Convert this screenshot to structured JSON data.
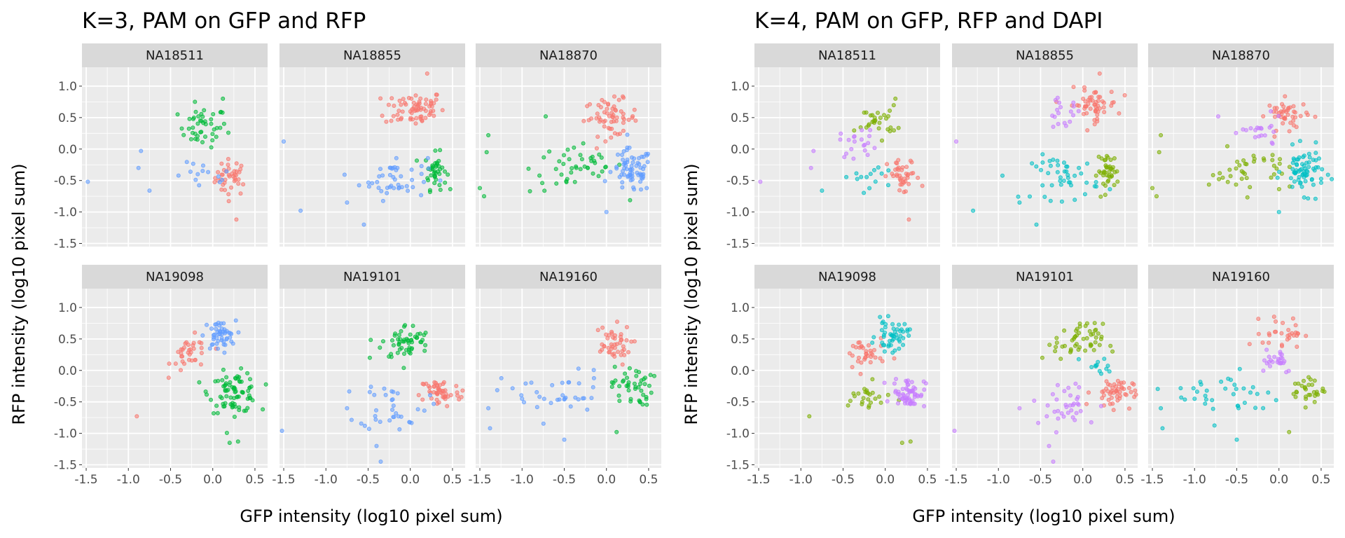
{
  "chart_data": [
    {
      "type": "scatter",
      "title": "K=3, PAM on GFP and RFP",
      "xlabel": "GFP intensity (log10 pixel sum)",
      "ylabel": "RFP intensity (log10 pixel sum)",
      "xlim": [
        -1.55,
        0.65
      ],
      "ylim": [
        -1.55,
        1.3
      ],
      "xticks": [
        "-1.5",
        "-1.0",
        "-0.5",
        "0.0",
        "0.5"
      ],
      "yticks": [
        "-1.5",
        "-1.0",
        "-0.5",
        "0.0",
        "0.5",
        "1.0"
      ],
      "grid": true,
      "legend": "none",
      "cluster_colors": [
        "#F8766D",
        "#00BA38",
        "#619CFF"
      ],
      "panels": [
        {
          "name": "NA18511",
          "clusters": [
            {
              "cx": 0.22,
              "cy": -0.45,
              "sx": 0.12,
              "sy": 0.18,
              "n": 40,
              "color": "#F8766D",
              "outliers": [
                [
                  0.28,
                  -1.12
                ]
              ]
            },
            {
              "cx": -0.12,
              "cy": 0.35,
              "sx": 0.18,
              "sy": 0.2,
              "n": 45,
              "color": "#00BA38",
              "outliers": [
                [
                  0.12,
                  0.8
                ]
              ]
            },
            {
              "cx": -0.1,
              "cy": -0.45,
              "sx": 0.22,
              "sy": 0.14,
              "n": 14,
              "color": "#619CFF",
              "outliers": [
                [
                  -1.48,
                  -0.52
                ],
                [
                  -0.88,
                  -0.3
                ],
                [
                  -0.75,
                  -0.66
                ],
                [
                  -0.85,
                  -0.03
                ]
              ]
            }
          ]
        },
        {
          "name": "NA18855",
          "clusters": [
            {
              "cx": 0.05,
              "cy": 0.65,
              "sx": 0.22,
              "sy": 0.18,
              "n": 70,
              "color": "#F8766D",
              "outliers": [
                [
                  0.2,
                  1.2
                ]
              ]
            },
            {
              "cx": 0.3,
              "cy": -0.35,
              "sx": 0.08,
              "sy": 0.18,
              "n": 40,
              "color": "#00BA38",
              "outliers": []
            },
            {
              "cx": -0.2,
              "cy": -0.45,
              "sx": 0.25,
              "sy": 0.22,
              "n": 45,
              "color": "#619CFF",
              "outliers": [
                [
                  -1.5,
                  0.12
                ],
                [
                  -1.3,
                  -0.98
                ],
                [
                  -0.55,
                  -1.2
                ],
                [
                  -0.75,
                  -0.85
                ]
              ]
            }
          ]
        },
        {
          "name": "NA18870",
          "clusters": [
            {
              "cx": 0.05,
              "cy": 0.5,
              "sx": 0.2,
              "sy": 0.18,
              "n": 60,
              "color": "#F8766D",
              "outliers": []
            },
            {
              "cx": -0.35,
              "cy": -0.3,
              "sx": 0.35,
              "sy": 0.25,
              "n": 45,
              "color": "#00BA38",
              "outliers": [
                [
                  -1.4,
                  0.22
                ],
                [
                  -1.42,
                  -0.05
                ],
                [
                  -1.5,
                  -0.62
                ],
                [
                  -1.45,
                  -0.75
                ],
                [
                  -0.72,
                  0.52
                ]
              ]
            },
            {
              "cx": 0.3,
              "cy": -0.35,
              "sx": 0.15,
              "sy": 0.22,
              "n": 70,
              "color": "#619CFF",
              "outliers": [
                [
                  0.0,
                  -1.0
                ]
              ]
            }
          ]
        },
        {
          "name": "NA19098",
          "clusters": [
            {
              "cx": -0.25,
              "cy": 0.25,
              "sx": 0.15,
              "sy": 0.18,
              "n": 35,
              "color": "#F8766D",
              "outliers": [
                [
                  -0.9,
                  -0.73
                ]
              ]
            },
            {
              "cx": 0.25,
              "cy": -0.35,
              "sx": 0.18,
              "sy": 0.2,
              "n": 80,
              "color": "#00BA38",
              "outliers": [
                [
                  0.2,
                  -1.15
                ],
                [
                  0.3,
                  -1.13
                ]
              ]
            },
            {
              "cx": 0.08,
              "cy": 0.55,
              "sx": 0.12,
              "sy": 0.15,
              "n": 50,
              "color": "#619CFF",
              "outliers": []
            }
          ]
        },
        {
          "name": "NA19101",
          "clusters": [
            {
              "cx": 0.35,
              "cy": -0.35,
              "sx": 0.15,
              "sy": 0.15,
              "n": 50,
              "color": "#F8766D",
              "outliers": [
                [
                  0.62,
                  -0.32
                ]
              ]
            },
            {
              "cx": -0.05,
              "cy": 0.45,
              "sx": 0.18,
              "sy": 0.18,
              "n": 55,
              "color": "#00BA38",
              "outliers": [
                [
                  -0.48,
                  0.2
                ]
              ]
            },
            {
              "cx": -0.2,
              "cy": -0.55,
              "sx": 0.25,
              "sy": 0.25,
              "n": 35,
              "color": "#619CFF",
              "outliers": [
                [
                  -1.52,
                  -0.96
                ],
                [
                  -0.75,
                  -0.6
                ],
                [
                  -0.35,
                  -1.45
                ],
                [
                  -0.4,
                  -1.2
                ]
              ]
            }
          ]
        },
        {
          "name": "NA19160",
          "clusters": [
            {
              "cx": 0.05,
              "cy": 0.4,
              "sx": 0.15,
              "sy": 0.2,
              "n": 45,
              "color": "#F8766D",
              "outliers": []
            },
            {
              "cx": 0.3,
              "cy": -0.25,
              "sx": 0.15,
              "sy": 0.2,
              "n": 45,
              "color": "#00BA38",
              "outliers": [
                [
                  0.12,
                  -0.98
                ]
              ]
            },
            {
              "cx": -0.6,
              "cy": -0.4,
              "sx": 0.4,
              "sy": 0.25,
              "n": 35,
              "color": "#619CFF",
              "outliers": [
                [
                  -1.4,
                  -0.6
                ],
                [
                  -1.38,
                  -0.92
                ],
                [
                  -1.0,
                  -0.45
                ],
                [
                  -0.5,
                  -1.1
                ]
              ]
            }
          ]
        }
      ]
    },
    {
      "type": "scatter",
      "title": "K=4, PAM on GFP, RFP and DAPI",
      "xlabel": "GFP intensity (log10 pixel sum)",
      "ylabel": "RFP intensity (log10 pixel sum)",
      "xlim": [
        -1.55,
        0.65
      ],
      "ylim": [
        -1.55,
        1.3
      ],
      "xticks": [
        "-1.5",
        "-1.0",
        "-0.5",
        "0.0",
        "0.5"
      ],
      "yticks": [
        "-1.5",
        "-1.0",
        "-0.5",
        "0.0",
        "0.5",
        "1.0"
      ],
      "grid": true,
      "legend": "none",
      "cluster_colors": [
        "#F8766D",
        "#7CAE00",
        "#00BFC4",
        "#C77CFF"
      ],
      "panels": [
        {
          "name": "NA18511",
          "clusters": [
            {
              "cx": 0.22,
              "cy": -0.45,
              "sx": 0.12,
              "sy": 0.18,
              "n": 40,
              "color": "#F8766D",
              "outliers": [
                [
                  0.28,
                  -1.12
                ]
              ]
            },
            {
              "cx": -0.1,
              "cy": 0.45,
              "sx": 0.15,
              "sy": 0.15,
              "n": 30,
              "color": "#7CAE00",
              "outliers": [
                [
                  0.12,
                  0.8
                ]
              ]
            },
            {
              "cx": -0.15,
              "cy": -0.45,
              "sx": 0.22,
              "sy": 0.14,
              "n": 14,
              "color": "#00BFC4",
              "outliers": [
                [
                  -0.75,
                  -0.66
                ]
              ]
            },
            {
              "cx": -0.3,
              "cy": 0.1,
              "sx": 0.15,
              "sy": 0.15,
              "n": 20,
              "color": "#C77CFF",
              "outliers": [
                [
                  -1.48,
                  -0.52
                ],
                [
                  -0.88,
                  -0.3
                ],
                [
                  -0.85,
                  -0.03
                ]
              ]
            }
          ]
        },
        {
          "name": "NA18855",
          "clusters": [
            {
              "cx": 0.12,
              "cy": 0.7,
              "sx": 0.18,
              "sy": 0.16,
              "n": 55,
              "color": "#F8766D",
              "outliers": [
                [
                  0.2,
                  1.2
                ]
              ]
            },
            {
              "cx": 0.3,
              "cy": -0.35,
              "sx": 0.08,
              "sy": 0.18,
              "n": 40,
              "color": "#7CAE00",
              "outliers": []
            },
            {
              "cx": -0.2,
              "cy": -0.45,
              "sx": 0.25,
              "sy": 0.22,
              "n": 45,
              "color": "#00BFC4",
              "outliers": [
                [
                  -1.3,
                  -0.98
                ],
                [
                  -0.55,
                  -1.2
                ],
                [
                  -0.75,
                  -0.85
                ]
              ]
            },
            {
              "cx": -0.25,
              "cy": 0.55,
              "sx": 0.15,
              "sy": 0.15,
              "n": 18,
              "color": "#C77CFF",
              "outliers": [
                [
                  -1.5,
                  0.12
                ]
              ]
            }
          ]
        },
        {
          "name": "NA18870",
          "clusters": [
            {
              "cx": 0.1,
              "cy": 0.55,
              "sx": 0.15,
              "sy": 0.15,
              "n": 45,
              "color": "#F8766D",
              "outliers": []
            },
            {
              "cx": -0.35,
              "cy": -0.35,
              "sx": 0.3,
              "sy": 0.22,
              "n": 40,
              "color": "#7CAE00",
              "outliers": [
                [
                  -1.4,
                  0.22
                ],
                [
                  -1.42,
                  -0.05
                ],
                [
                  -1.5,
                  -0.62
                ],
                [
                  -1.45,
                  -0.75
                ]
              ]
            },
            {
              "cx": 0.3,
              "cy": -0.35,
              "sx": 0.15,
              "sy": 0.22,
              "n": 70,
              "color": "#00BFC4",
              "outliers": [
                [
                  0.0,
                  -1.0
                ]
              ]
            },
            {
              "cx": -0.2,
              "cy": 0.25,
              "sx": 0.15,
              "sy": 0.15,
              "n": 20,
              "color": "#C77CFF",
              "outliers": [
                [
                  -0.72,
                  0.52
                ]
              ]
            }
          ]
        },
        {
          "name": "NA19098",
          "clusters": [
            {
              "cx": -0.25,
              "cy": 0.25,
              "sx": 0.15,
              "sy": 0.18,
              "n": 35,
              "color": "#F8766D",
              "outliers": []
            },
            {
              "cx": -0.2,
              "cy": -0.45,
              "sx": 0.2,
              "sy": 0.15,
              "n": 25,
              "color": "#7CAE00",
              "outliers": [
                [
                  -0.9,
                  -0.73
                ],
                [
                  0.2,
                  -1.15
                ],
                [
                  0.3,
                  -1.13
                ]
              ]
            },
            {
              "cx": 0.08,
              "cy": 0.55,
              "sx": 0.12,
              "sy": 0.15,
              "n": 50,
              "color": "#00BFC4",
              "outliers": []
            },
            {
              "cx": 0.28,
              "cy": -0.35,
              "sx": 0.12,
              "sy": 0.15,
              "n": 60,
              "color": "#C77CFF",
              "outliers": []
            }
          ]
        },
        {
          "name": "NA19101",
          "clusters": [
            {
              "cx": 0.35,
              "cy": -0.35,
              "sx": 0.15,
              "sy": 0.15,
              "n": 50,
              "color": "#F8766D",
              "outliers": [
                [
                  0.62,
                  -0.32
                ]
              ]
            },
            {
              "cx": -0.05,
              "cy": 0.45,
              "sx": 0.18,
              "sy": 0.18,
              "n": 50,
              "color": "#7CAE00",
              "outliers": [
                [
                  -0.48,
                  0.2
                ]
              ]
            },
            {
              "cx": 0.2,
              "cy": 0.05,
              "sx": 0.12,
              "sy": 0.1,
              "n": 12,
              "color": "#00BFC4",
              "outliers": []
            },
            {
              "cx": -0.2,
              "cy": -0.55,
              "sx": 0.25,
              "sy": 0.25,
              "n": 35,
              "color": "#C77CFF",
              "outliers": [
                [
                  -1.52,
                  -0.96
                ],
                [
                  -0.75,
                  -0.6
                ],
                [
                  -0.35,
                  -1.45
                ],
                [
                  -0.4,
                  -1.2
                ]
              ]
            }
          ]
        },
        {
          "name": "NA19160",
          "clusters": [
            {
              "cx": 0.05,
              "cy": 0.6,
              "sx": 0.15,
              "sy": 0.15,
              "n": 30,
              "color": "#F8766D",
              "outliers": []
            },
            {
              "cx": 0.35,
              "cy": -0.3,
              "sx": 0.12,
              "sy": 0.15,
              "n": 30,
              "color": "#7CAE00",
              "outliers": [
                [
                  0.12,
                  -0.98
                ]
              ]
            },
            {
              "cx": -0.6,
              "cy": -0.4,
              "sx": 0.4,
              "sy": 0.25,
              "n": 35,
              "color": "#00BFC4",
              "outliers": [
                [
                  -1.4,
                  -0.6
                ],
                [
                  -1.38,
                  -0.92
                ],
                [
                  -1.0,
                  -0.45
                ],
                [
                  -0.5,
                  -1.1
                ]
              ]
            },
            {
              "cx": -0.05,
              "cy": 0.2,
              "sx": 0.15,
              "sy": 0.15,
              "n": 25,
              "color": "#C77CFF",
              "outliers": []
            }
          ]
        }
      ]
    }
  ]
}
